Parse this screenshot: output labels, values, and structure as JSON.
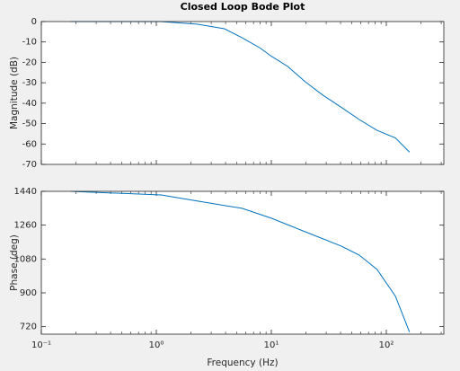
{
  "chart_data": [
    {
      "type": "line",
      "title": "Closed Loop Bode Plot",
      "ylabel": "Magnitude (dB)",
      "xscale": "log",
      "box": true,
      "x": [
        0.18,
        1.1,
        2.3,
        3.9,
        5.6,
        8.0,
        10,
        13.9,
        19.7,
        28,
        40.5,
        58,
        83,
        120,
        159
      ],
      "series": [
        {
          "color": "#0072bd",
          "values": [
            0,
            0,
            -1.3,
            -3.5,
            -8,
            -13,
            -17,
            -22,
            -29.5,
            -36,
            -42,
            -48,
            -53.3,
            -57,
            -64
          ]
        }
      ],
      "xlim": [
        0.1,
        316.2
      ],
      "xticks": [
        0.1,
        1,
        10,
        100
      ],
      "ylim": [
        -70,
        0
      ],
      "yticks": [
        0,
        -10,
        -20,
        -30,
        -40,
        -50,
        -60,
        -70
      ]
    },
    {
      "type": "line",
      "ylabel": "Phase (deg)",
      "xlabel": "Frequency (Hz)",
      "xscale": "log",
      "box": true,
      "x": [
        0.18,
        1.1,
        2.3,
        5.6,
        10,
        19.7,
        40.5,
        58,
        83,
        120,
        159
      ],
      "series": [
        {
          "color": "#0072bd",
          "values": [
            1440,
            1421,
            1388,
            1349,
            1297,
            1225,
            1149,
            1101,
            1025,
            882,
            691
          ]
        }
      ],
      "xlim": [
        0.1,
        316.2
      ],
      "xticks": [
        {
          "value": 0.1,
          "label": "10⁻¹"
        },
        {
          "value": 1,
          "label": "10⁰"
        },
        {
          "value": 10,
          "label": "10¹"
        },
        {
          "value": 100,
          "label": "10²"
        }
      ],
      "ylim": [
        680,
        1440
      ],
      "yticks": [
        1440,
        1260,
        1080,
        900,
        720
      ]
    }
  ]
}
